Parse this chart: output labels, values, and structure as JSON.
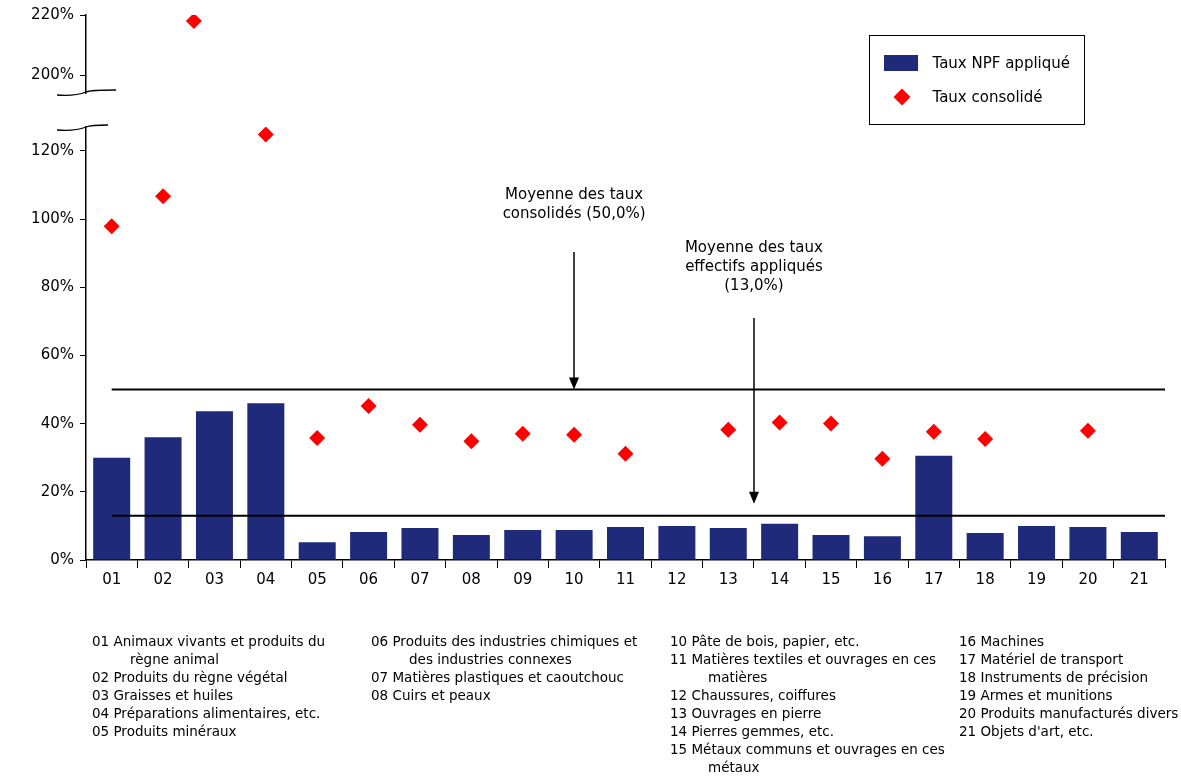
{
  "chart_data": [
    {
      "type": "scatter",
      "categories": [
        "01",
        "02",
        "03",
        "04",
        "05",
        "06",
        "07",
        "08",
        "09",
        "10",
        "11",
        "12",
        "13",
        "14",
        "15",
        "16",
        "17",
        "18",
        "19",
        "20",
        "21"
      ],
      "series": [
        {
          "type": "scatter",
          "color": "#ff0000",
          "values": [
            null,
            null,
            218,
            null,
            null,
            null,
            null,
            null,
            null,
            null,
            null,
            null,
            null,
            null,
            null,
            null,
            null,
            null,
            null,
            null,
            null
          ]
        }
      ],
      "ylim": [
        194,
        220
      ],
      "yticks": [
        {
          "value": 200,
          "label": "200%"
        },
        {
          "value": 220,
          "label": "220%"
        }
      ],
      "marker": "diamond",
      "grid": false,
      "tick_labels": "y"
    },
    {
      "type": "bar",
      "categories": [
        "01",
        "02",
        "03",
        "04",
        "05",
        "06",
        "07",
        "08",
        "09",
        "10",
        "11",
        "12",
        "13",
        "14",
        "15",
        "16",
        "17",
        "18",
        "19",
        "20",
        "21"
      ],
      "series": [
        {
          "name": "Taux NPF appliqué",
          "type": "bar",
          "color": "#1f2a7a",
          "values": [
            30,
            36,
            43.6,
            46,
            5.2,
            8.2,
            9.4,
            7.3,
            8.8,
            8.8,
            9.7,
            10,
            9.4,
            10.6,
            7.3,
            7,
            30.6,
            7.9,
            10,
            9.7,
            8.2
          ]
        },
        {
          "name": "Taux consolidé",
          "type": "scatter",
          "color": "#ff0000",
          "values": [
            97.9,
            106.7,
            null,
            124.8,
            35.8,
            45.2,
            39.7,
            34.8,
            37,
            36.7,
            31.2,
            null,
            38.2,
            40.3,
            40,
            29.7,
            37.6,
            35.5,
            null,
            37.9,
            null
          ]
        }
      ],
      "ylim": [
        0,
        127
      ],
      "yticks": [
        {
          "value": 0,
          "label": "0%"
        },
        {
          "value": 20,
          "label": "20%"
        },
        {
          "value": 40,
          "label": "40%"
        },
        {
          "value": 60,
          "label": "60%"
        },
        {
          "value": 80,
          "label": "80%"
        },
        {
          "value": 100,
          "label": "100%"
        },
        {
          "value": 120,
          "label": "120%"
        }
      ],
      "ref_lines": [
        {
          "axis": "y",
          "value": 50,
          "color": "#000000"
        },
        {
          "axis": "y",
          "value": 13,
          "color": "#000000"
        }
      ],
      "marker": "diamond",
      "grid": false,
      "legend": "top right",
      "annotations": [
        "Moyenne des taux consolidés (50,0%)",
        "Moyenne des taux effectifs appliqués (13,0%)",
        "01 Animaux vivants et produits du règne animal",
        "02 Produits du règne végétal",
        "03 Graisses et huiles",
        "04 Préparations alimentaires, etc.",
        "05 Produits minéraux",
        "06 Produits des industries chimiques et des industries connexes",
        "07 Matières plastiques et caoutchouc",
        "08 Cuirs et peaux",
        "10 Pâte de bois, papier, etc.",
        "11 Matières textiles et ouvrages en ces matières",
        "12 Chaussures, coiffures",
        "13 Ouvrages en pierre",
        "14 Pierres gemmes, etc.",
        "15 Métaux communs et ouvrages en ces métaux",
        "16 Machines",
        "17 Matériel de transport",
        "18 Instruments de précision",
        "19 Armes et munitions",
        "20 Produits manufacturés divers",
        "21 Objets d'art, etc."
      ]
    }
  ]
}
